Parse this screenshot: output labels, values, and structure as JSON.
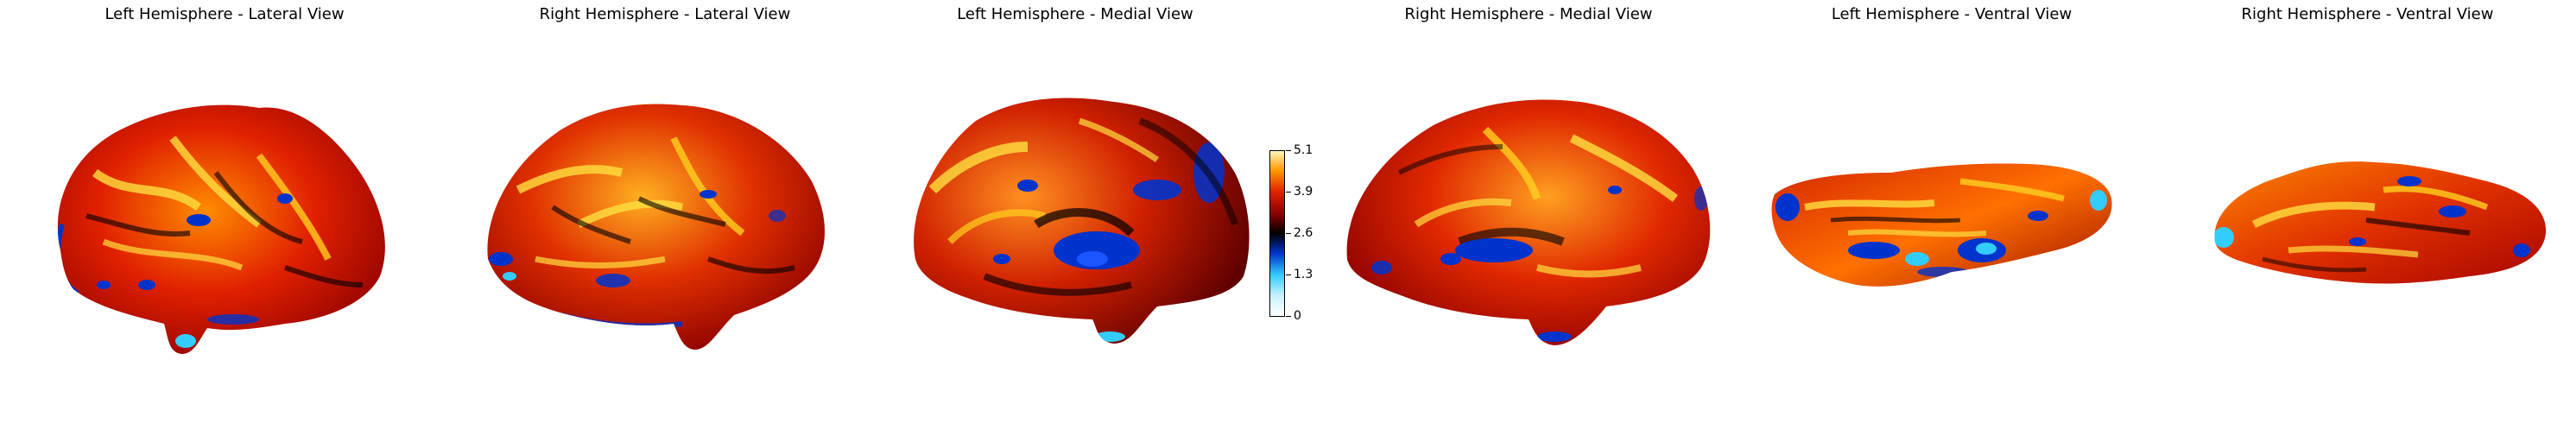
{
  "panels": [
    {
      "title": "Left Hemisphere - Lateral View"
    },
    {
      "title": "Right Hemisphere - Lateral View"
    },
    {
      "title": "Left Hemisphere - Medial View"
    },
    {
      "title": "Right Hemisphere - Medial View"
    },
    {
      "title": "Left Hemisphere - Ventral View"
    },
    {
      "title": "Right Hemisphere - Ventral View"
    }
  ],
  "colorbar": {
    "colormap": "cold-hot (blue-cyan-black-red-yellow-white)",
    "min": 0,
    "max": 5.1,
    "tick_labels": [
      "5.1",
      "3.9",
      "2.6",
      "1.3",
      "0"
    ]
  },
  "colors": {
    "dark_red": "#8b0000",
    "red": "#e02000",
    "orange": "#ff7a00",
    "yellow": "#ffe040",
    "blue": "#0033cc",
    "cyan": "#33ccff",
    "black": "#000000"
  }
}
